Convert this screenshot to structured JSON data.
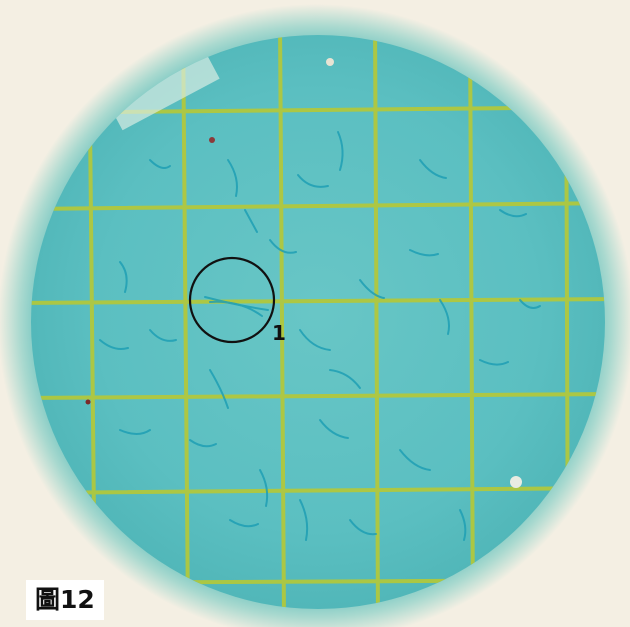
{
  "figure": {
    "label": "圖12",
    "callout_number": "1"
  },
  "colors": {
    "paper": "#f4efe3",
    "filter_halo": "#bfe0d4",
    "filter_ring": "#6fc2bd",
    "filter_background": "#5cc0c2",
    "grid_line": "#b4c83a",
    "fiber": "#1f9fb4",
    "callout_ring": "#111111"
  }
}
